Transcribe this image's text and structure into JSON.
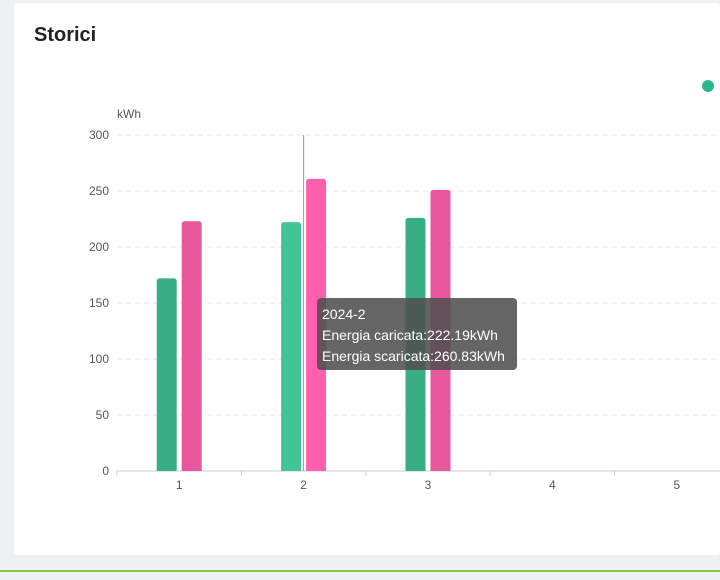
{
  "title": "Storici",
  "colors": {
    "charged": "#38ae86",
    "discharged": "#e8579b",
    "charged_highlight": "#41c596",
    "discharged_highlight": "#ff5fae",
    "legend_dot": "#2fb38e"
  },
  "tooltip": {
    "header": "2024-2",
    "line1": "Energia caricata:222.19kWh",
    "line2": "Energia scaricata:260.83kWh"
  },
  "chart_data": {
    "type": "bar",
    "ylabel": "kWh",
    "xlabel": "",
    "categories": [
      "1",
      "2",
      "3",
      "4",
      "5"
    ],
    "ylim": [
      0,
      300
    ],
    "yticks": [
      0,
      50,
      100,
      150,
      200,
      250,
      300
    ],
    "grid": true,
    "highlighted_category": "2",
    "series": [
      {
        "name": "Energia caricata",
        "values": [
          172,
          222.19,
          226,
          null,
          null
        ]
      },
      {
        "name": "Energia scaricata",
        "values": [
          223,
          260.83,
          251,
          null,
          null
        ]
      }
    ]
  }
}
